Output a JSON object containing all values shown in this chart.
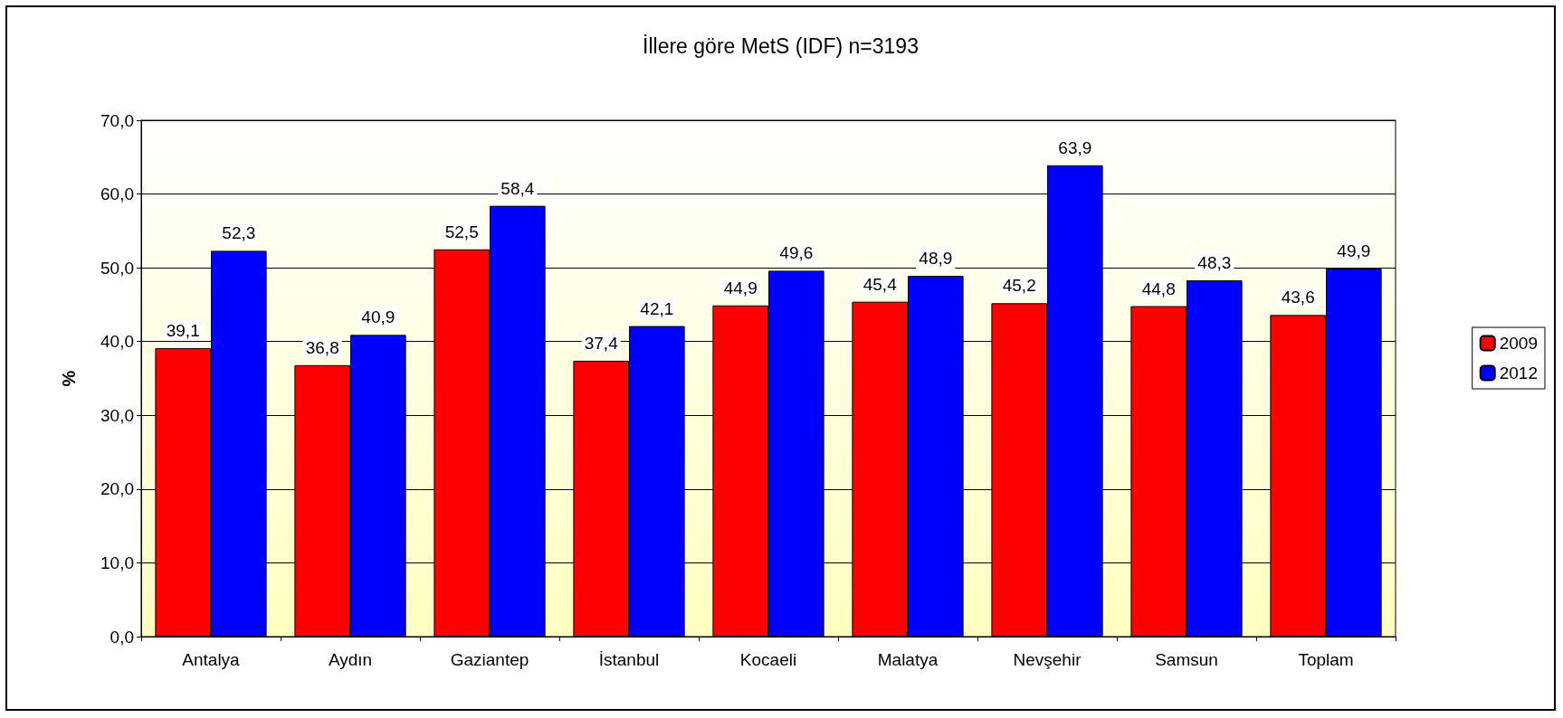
{
  "chart_data": {
    "type": "bar",
    "title": "İllere göre MetS (IDF) n=3193",
    "ylabel": "%",
    "categories": [
      "Antalya",
      "Aydın",
      "Gaziantep",
      "İstanbul",
      "Kocaeli",
      "Malatya",
      "Nevşehir",
      "Samsun",
      "Toplam"
    ],
    "series": [
      {
        "name": "2009",
        "color": "#ff0000",
        "values": [
          39.1,
          36.8,
          52.5,
          37.4,
          44.9,
          45.4,
          45.2,
          44.8,
          43.6
        ],
        "value_labels": [
          "39,1",
          "36,8",
          "52,5",
          "37,4",
          "44,9",
          "45,4",
          "45,2",
          "44,8",
          "43,6"
        ]
      },
      {
        "name": "2012",
        "color": "#0000ff",
        "values": [
          52.3,
          40.9,
          58.4,
          42.1,
          49.6,
          48.9,
          63.9,
          48.3,
          49.9
        ],
        "value_labels": [
          "52,3",
          "40,9",
          "58,4",
          "42,1",
          "49,6",
          "48,9",
          "63,9",
          "48,3",
          "49,9"
        ]
      }
    ],
    "ylim": [
      0,
      70
    ],
    "yticks": [
      {
        "value": 0,
        "label": "0,0"
      },
      {
        "value": 10,
        "label": "10,0"
      },
      {
        "value": 20,
        "label": "20,0"
      },
      {
        "value": 30,
        "label": "30,0"
      },
      {
        "value": 40,
        "label": "40,0"
      },
      {
        "value": 50,
        "label": "50,0"
      },
      {
        "value": 60,
        "label": "60,0"
      },
      {
        "value": 70,
        "label": "70,0"
      }
    ],
    "grid": "y",
    "legend": "right"
  }
}
